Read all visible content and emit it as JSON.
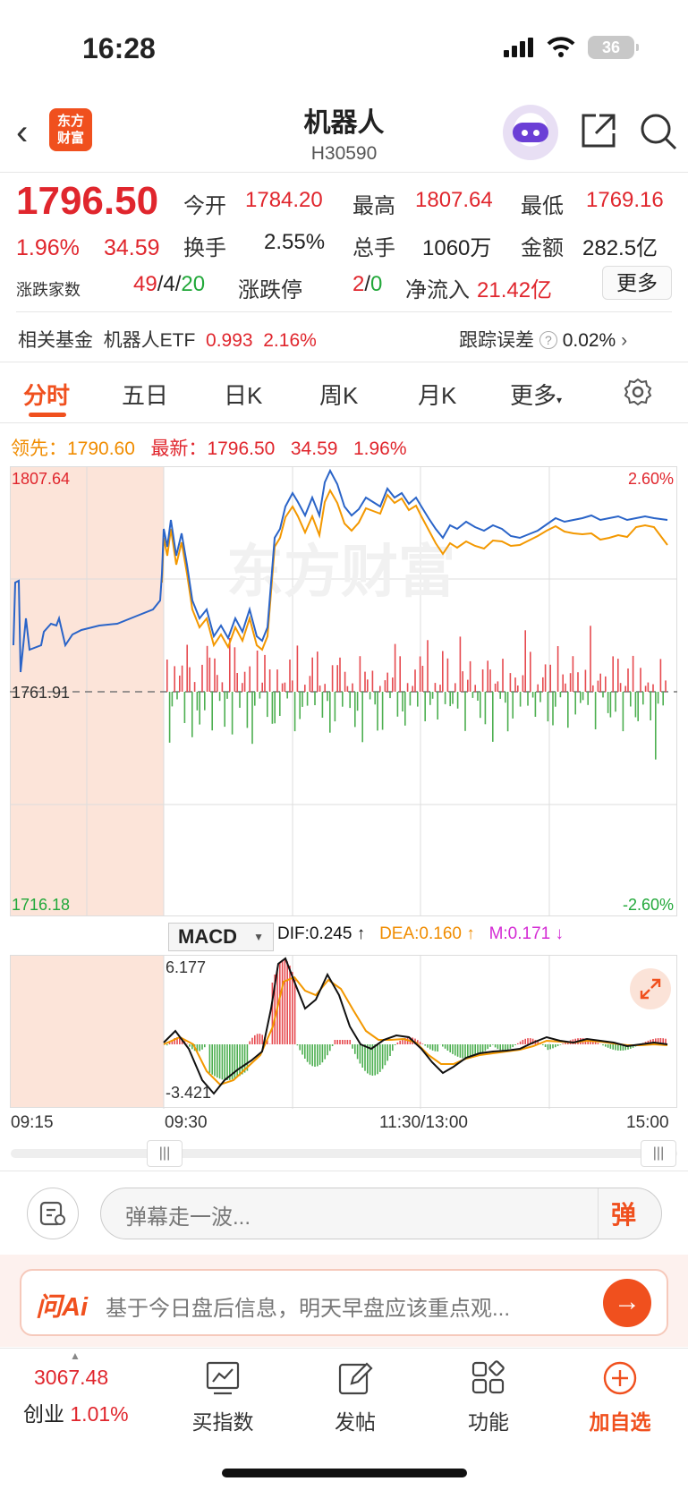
{
  "status": {
    "time": "16:28",
    "battery": "36"
  },
  "header": {
    "logo_line1": "东方",
    "logo_line2": "财富",
    "title": "机器人",
    "code": "H30590"
  },
  "quote": {
    "price": "1796.50",
    "change_pct": "1.96%",
    "change_val": "34.59",
    "open_label": "今开",
    "open": "1784.20",
    "high_label": "最高",
    "high": "1807.64",
    "low_label": "最低",
    "low": "1769.16",
    "turnover_label": "换手",
    "turnover": "2.55%",
    "volume_label": "总手",
    "volume": "1060万",
    "amount_label": "金额",
    "amount": "282.5亿",
    "breadth_label": "涨跌家数",
    "breadth_up": "49",
    "breadth_flat": "4",
    "breadth_down": "20",
    "limit_label": "涨跌停",
    "limit_up": "2",
    "limit_down": "0",
    "netflow_label": "净流入",
    "netflow": "21.42亿",
    "more": "更多"
  },
  "fund": {
    "label": "相关基金",
    "name": "机器人ETF",
    "price": "0.993",
    "pct": "2.16%",
    "track_label": "跟踪误差",
    "track_val": "0.02%"
  },
  "tabs": [
    "分时",
    "五日",
    "日K",
    "周K",
    "月K",
    "更多"
  ],
  "chart": {
    "lead_label": "领先：",
    "lead_val": "1790.60",
    "latest_label": "最新：",
    "latest_price": "1796.50",
    "latest_chg": "34.59",
    "latest_pct": "1.96%",
    "y_high": "1807.64",
    "y_mid": "1761.91",
    "y_low": "1716.18",
    "pct_high": "2.60%",
    "pct_low": "-2.60%",
    "watermark": "东方财富"
  },
  "macd": {
    "selector": "MACD",
    "dif": "DIF:0.245 ↑",
    "dea": "DEA:0.160 ↑",
    "m": "M:0.171 ↓",
    "y_high": "6.177",
    "y_low": "-3.421"
  },
  "times": [
    "09:15",
    "09:30",
    "11:30/13:00",
    "15:00"
  ],
  "danmu": {
    "placeholder": "弹幕走一波...",
    "button": "弹"
  },
  "ai": {
    "logo": "问Ai",
    "text": "基于今日盘后信息，明天早盘应该重点观..."
  },
  "nav": {
    "index_value": "3067.48",
    "index_name": "创业",
    "index_pct": "1.01%",
    "buy": "买指数",
    "post": "发帖",
    "func": "功能",
    "add": "加自选"
  }
}
